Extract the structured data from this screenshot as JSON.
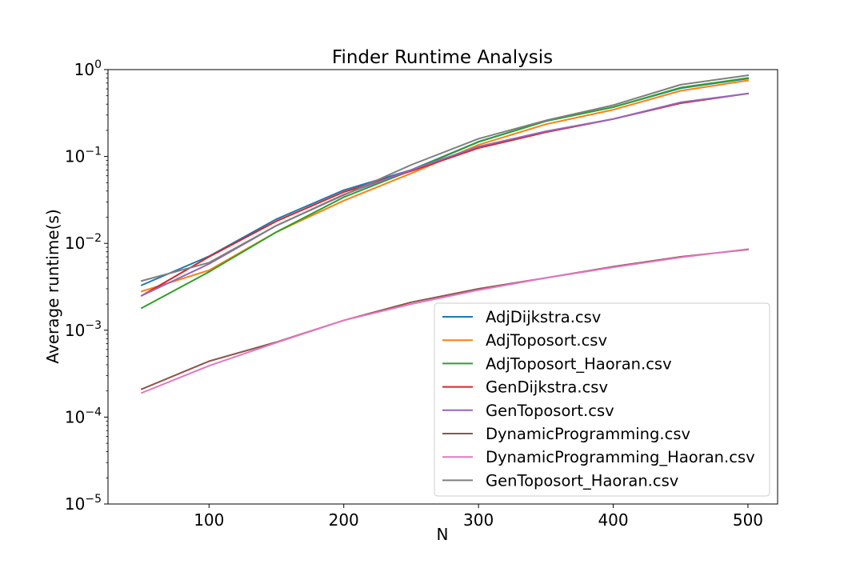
{
  "chart_data": {
    "type": "line",
    "title": "Finder Runtime Analysis",
    "xlabel": "N",
    "ylabel": "Average runtime(s)",
    "xlim": [
      25,
      522
    ],
    "ylim": [
      1e-05,
      1
    ],
    "yscale": "log",
    "grid": false,
    "legend_position": "lower-right",
    "x_ticks": [
      100,
      200,
      300,
      400,
      500
    ],
    "x_tick_labels": [
      "100",
      "200",
      "300",
      "400",
      "500"
    ],
    "y_ticks": [
      1e-05,
      0.0001,
      0.001,
      0.01,
      0.1,
      1
    ],
    "y_tick_labels": [
      {
        "base": "10",
        "exp": "−5"
      },
      {
        "base": "10",
        "exp": "−4"
      },
      {
        "base": "10",
        "exp": "−3"
      },
      {
        "base": "10",
        "exp": "−2"
      },
      {
        "base": "10",
        "exp": "−1"
      },
      {
        "base": "10",
        "exp": "0"
      }
    ],
    "x": [
      50,
      100,
      150,
      200,
      250,
      300,
      350,
      400,
      450,
      500
    ],
    "series": [
      {
        "name": "AdjDijkstra.csv",
        "color": "#1f77b4",
        "values": [
          0.0033,
          0.0071,
          0.019,
          0.041,
          0.07,
          0.148,
          0.255,
          0.37,
          0.61,
          0.79
        ]
      },
      {
        "name": "AdjToposort.csv",
        "color": "#ff7f0e",
        "values": [
          0.0028,
          0.0049,
          0.0135,
          0.031,
          0.064,
          0.136,
          0.235,
          0.345,
          0.57,
          0.75
        ]
      },
      {
        "name": "AdjToposort_Haoran.csv",
        "color": "#2ca02c",
        "values": [
          0.0018,
          0.0047,
          0.0135,
          0.034,
          0.069,
          0.147,
          0.255,
          0.37,
          0.62,
          0.8
        ]
      },
      {
        "name": "GenDijkstra.csv",
        "color": "#d62728",
        "values": [
          0.0025,
          0.007,
          0.018,
          0.039,
          0.068,
          0.125,
          0.19,
          0.27,
          0.41,
          0.53
        ]
      },
      {
        "name": "GenToposort.csv",
        "color": "#9467bd",
        "values": [
          0.0025,
          0.0058,
          0.016,
          0.0365,
          0.07,
          0.13,
          0.195,
          0.27,
          0.42,
          0.53
        ]
      },
      {
        "name": "DynamicProgramming.csv",
        "color": "#8c564b",
        "values": [
          0.00021,
          0.00044,
          0.00073,
          0.0013,
          0.0021,
          0.003,
          0.004,
          0.0054,
          0.007,
          0.0085
        ]
      },
      {
        "name": "DynamicProgramming_Haoran.csv",
        "color": "#e377c2",
        "values": [
          0.00019,
          0.00039,
          0.00072,
          0.0013,
          0.002,
          0.0029,
          0.004,
          0.0053,
          0.0069,
          0.0086
        ]
      },
      {
        "name": "GenToposort_Haoran.csv",
        "color": "#7f7f7f",
        "values": [
          0.0037,
          0.006,
          0.016,
          0.036,
          0.08,
          0.16,
          0.26,
          0.39,
          0.67,
          0.86
        ]
      }
    ]
  }
}
